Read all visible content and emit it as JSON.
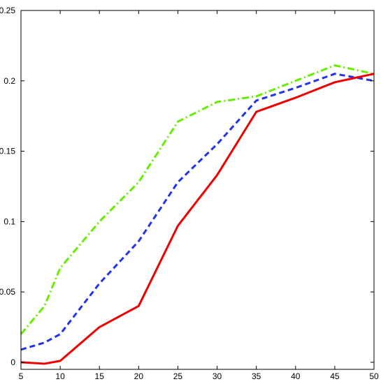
{
  "chart_data": {
    "type": "line",
    "title": "",
    "xlabel": "",
    "ylabel": "",
    "xlim": [
      5,
      50
    ],
    "ylim": [
      -0.005,
      0.25
    ],
    "grid": false,
    "legend": "none",
    "x_ticks": [
      5,
      10,
      15,
      20,
      25,
      30,
      35,
      40,
      45,
      50
    ],
    "x_tick_labels": [
      "5",
      "10",
      "15",
      "20",
      "25",
      "30",
      "35",
      "40",
      "45",
      "50"
    ],
    "y_ticks": [
      0,
      0.05,
      0.1,
      0.15,
      0.2,
      0.25
    ],
    "y_tick_labels": [
      "0",
      "0.05",
      "0.1",
      "0.15",
      "0.2",
      "0.25"
    ],
    "series": [
      {
        "color": "#66ee00",
        "style": "dashdot",
        "x": [
          5,
          8,
          10,
          15,
          20,
          25,
          30,
          35,
          40,
          45,
          50
        ],
        "y": [
          0.02,
          0.04,
          0.067,
          0.1,
          0.128,
          0.171,
          0.185,
          0.189,
          0.2,
          0.211,
          0.205
        ]
      },
      {
        "color": "#2233ee",
        "style": "dashed",
        "x": [
          5,
          8,
          10,
          15,
          20,
          25,
          30,
          35,
          40,
          45,
          50
        ],
        "y": [
          0.009,
          0.014,
          0.02,
          0.056,
          0.086,
          0.128,
          0.155,
          0.186,
          0.195,
          0.205,
          0.2
        ]
      },
      {
        "color": "#ee0000",
        "style": "solid",
        "x": [
          5,
          8,
          10,
          15,
          20,
          25,
          30,
          35,
          40,
          45,
          50
        ],
        "y": [
          0.0,
          -0.001,
          0.001,
          0.025,
          0.04,
          0.097,
          0.133,
          0.178,
          0.188,
          0.199,
          0.205
        ]
      }
    ]
  }
}
